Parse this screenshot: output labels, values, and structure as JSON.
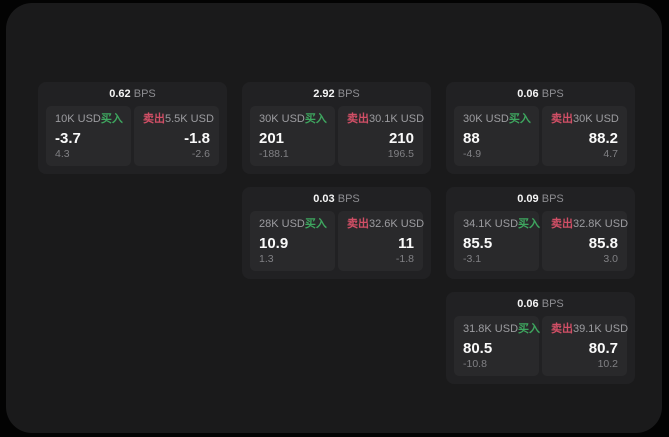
{
  "labels": {
    "bps_unit": "BPS",
    "buy": "买入",
    "sell": "卖出"
  },
  "colors": {
    "buy_green": "#3EA65F",
    "sell_red": "#D14F66",
    "window_bg": "#1A1A1B",
    "card_bg": "#212123",
    "tile_bg": "#29292B"
  },
  "cards": [
    {
      "bps": "0.62",
      "col": 1,
      "row": 1,
      "buy": {
        "amount": "10K USD",
        "price": "-3.7",
        "sub": "4.3"
      },
      "sell": {
        "amount": "5.5K USD",
        "price": "-1.8",
        "sub": "-2.6"
      }
    },
    {
      "bps": "2.92",
      "col": 2,
      "row": 1,
      "buy": {
        "amount": "30K USD",
        "price": "201",
        "sub": "-188.1"
      },
      "sell": {
        "amount": "30.1K USD",
        "price": "210",
        "sub": "196.5"
      }
    },
    {
      "bps": "0.06",
      "col": 3,
      "row": 1,
      "buy": {
        "amount": "30K USD",
        "price": "88",
        "sub": "-4.9"
      },
      "sell": {
        "amount": "30K USD",
        "price": "88.2",
        "sub": "4.7"
      }
    },
    {
      "bps": "0.03",
      "col": 2,
      "row": 2,
      "buy": {
        "amount": "28K USD",
        "price": "10.9",
        "sub": "1.3"
      },
      "sell": {
        "amount": "32.6K USD",
        "price": "11",
        "sub": "-1.8"
      }
    },
    {
      "bps": "0.09",
      "col": 3,
      "row": 2,
      "buy": {
        "amount": "34.1K USD",
        "price": "85.5",
        "sub": "-3.1"
      },
      "sell": {
        "amount": "32.8K USD",
        "price": "85.8",
        "sub": "3.0"
      }
    },
    {
      "bps": "0.06",
      "col": 3,
      "row": 3,
      "buy": {
        "amount": "31.8K USD",
        "price": "80.5",
        "sub": "-10.8"
      },
      "sell": {
        "amount": "39.1K USD",
        "price": "80.7",
        "sub": "10.2"
      }
    }
  ]
}
